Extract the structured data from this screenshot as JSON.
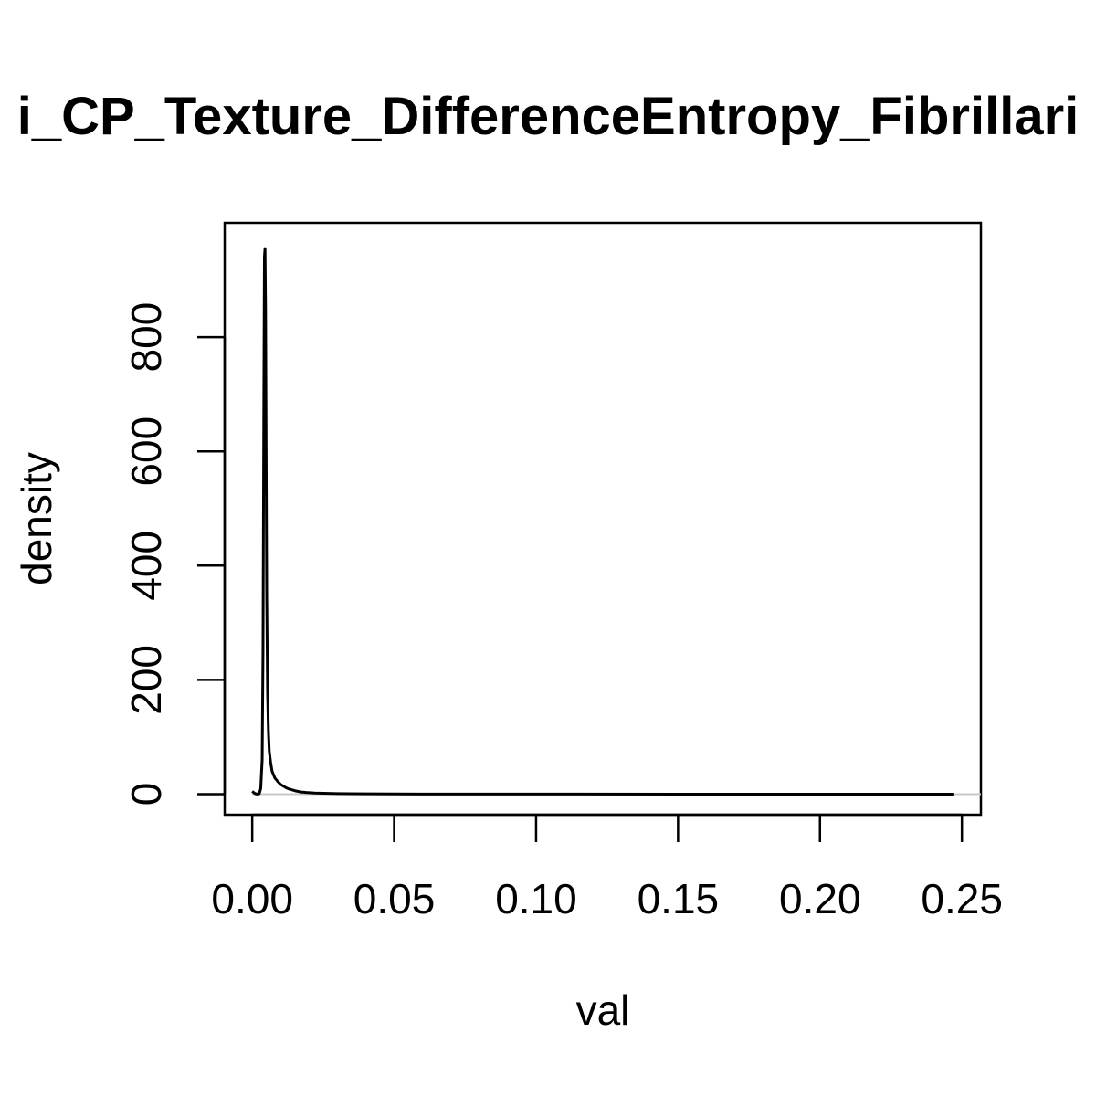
{
  "chart_data": {
    "type": "line",
    "title": "i_CP_Texture_DifferenceEntropy_Fibrillari",
    "xlabel": "val",
    "ylabel": "density",
    "xlim": [
      -0.0097,
      0.2567
    ],
    "ylim": [
      -36,
      1000
    ],
    "x_ticks": [
      0.0,
      0.05,
      0.1,
      0.15,
      0.2,
      0.25
    ],
    "x_tick_labels": [
      "0.00",
      "0.05",
      "0.10",
      "0.15",
      "0.20",
      "0.25"
    ],
    "y_ticks": [
      0,
      200,
      400,
      600,
      800
    ],
    "y_tick_labels": [
      "0",
      "200",
      "400",
      "600",
      "800"
    ],
    "grid": false,
    "baseline_zero": true,
    "series": [
      {
        "color": "#000000",
        "x": [
          0.0,
          0.001,
          0.002,
          0.0025,
          0.003,
          0.0035,
          0.0038,
          0.0041,
          0.0043,
          0.0045,
          0.0047,
          0.0049,
          0.0051,
          0.0054,
          0.0057,
          0.006,
          0.0065,
          0.007,
          0.008,
          0.009,
          0.01,
          0.011,
          0.012,
          0.013,
          0.015,
          0.017,
          0.019,
          0.022,
          0.025,
          0.03,
          0.04,
          0.06,
          0.1,
          0.15,
          0.2,
          0.247
        ],
        "y": [
          5,
          1,
          0,
          1,
          10,
          60,
          250,
          700,
          940,
          955,
          850,
          600,
          350,
          180,
          110,
          75,
          55,
          40,
          28,
          22,
          17,
          14,
          11,
          9,
          6,
          4,
          3,
          2,
          1.5,
          1,
          0.5,
          0.2,
          0.1,
          0.05,
          0.02,
          0.01
        ]
      }
    ]
  }
}
